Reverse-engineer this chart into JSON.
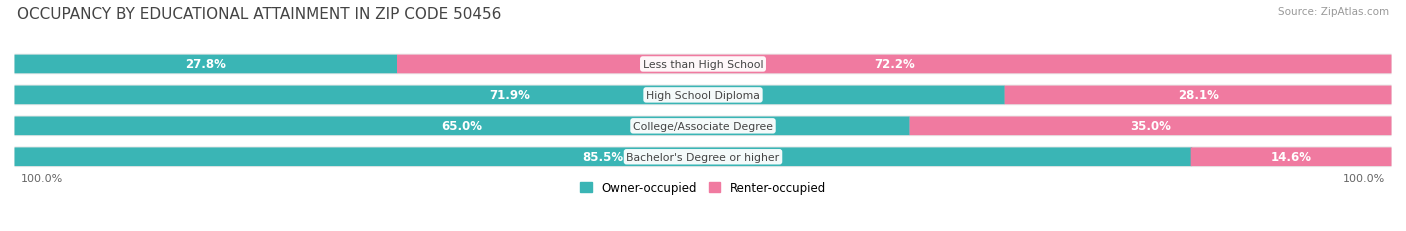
{
  "title": "OCCUPANCY BY EDUCATIONAL ATTAINMENT IN ZIP CODE 50456",
  "source": "Source: ZipAtlas.com",
  "categories": [
    "Less than High School",
    "High School Diploma",
    "College/Associate Degree",
    "Bachelor's Degree or higher"
  ],
  "owner_values": [
    27.8,
    71.9,
    65.0,
    85.5
  ],
  "renter_values": [
    72.2,
    28.1,
    35.0,
    14.6
  ],
  "owner_color": "#3ab5b5",
  "renter_color": "#f07aa0",
  "bg_color": "#ffffff",
  "bar_bg_color": "#e8e8e8",
  "legend_owner": "Owner-occupied",
  "legend_renter": "Renter-occupied",
  "xlim_left_label": "100.0%",
  "xlim_right_label": "100.0%",
  "title_fontsize": 11,
  "label_fontsize": 8.5,
  "bar_height": 0.62,
  "n_rows": 4
}
